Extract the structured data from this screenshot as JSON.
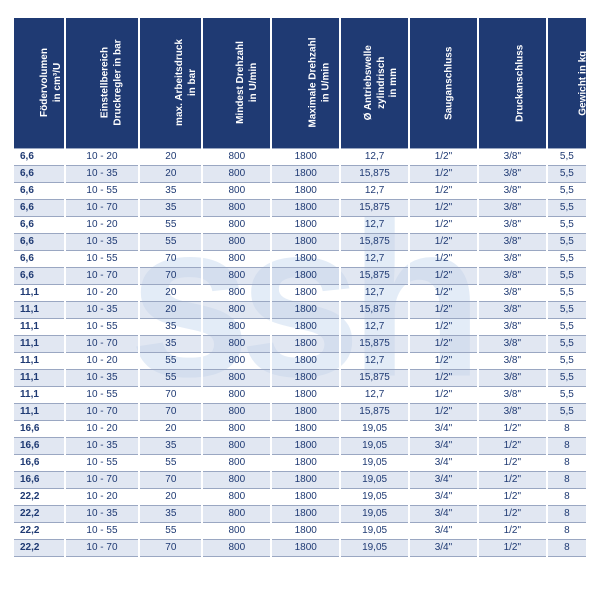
{
  "watermark": "ssh",
  "table": {
    "columns": [
      {
        "label": "Födervolumen\nin cm³/U",
        "width": "9%"
      },
      {
        "label": "Einstellbereich\nDruckregler in bar",
        "width": "13%"
      },
      {
        "label": "max. Arbeitsdruck\nin bar",
        "width": "11%"
      },
      {
        "label": "Mindest Drehzahl\nin U/min",
        "width": "12%"
      },
      {
        "label": "Maximale Drehzahl\nin U/min",
        "width": "12%"
      },
      {
        "label": "Ø Antriebswelle\nzylindrisch\nin mm",
        "width": "12%"
      },
      {
        "label": "Sauganschluss",
        "width": "12%"
      },
      {
        "label": "Druckanschluss",
        "width": "12%"
      },
      {
        "label": "Gewicht in kg",
        "width": "7%"
      }
    ],
    "rows": [
      [
        "6,6",
        "10 - 20",
        "20",
        "800",
        "1800",
        "12,7",
        "1/2\"",
        "3/8\"",
        "5,5"
      ],
      [
        "6,6",
        "10 - 35",
        "20",
        "800",
        "1800",
        "15,875",
        "1/2\"",
        "3/8\"",
        "5,5"
      ],
      [
        "6,6",
        "10 - 55",
        "35",
        "800",
        "1800",
        "12,7",
        "1/2\"",
        "3/8\"",
        "5,5"
      ],
      [
        "6,6",
        "10 - 70",
        "35",
        "800",
        "1800",
        "15,875",
        "1/2\"",
        "3/8\"",
        "5,5"
      ],
      [
        "6,6",
        "10 - 20",
        "55",
        "800",
        "1800",
        "12,7",
        "1/2\"",
        "3/8\"",
        "5,5"
      ],
      [
        "6,6",
        "10 - 35",
        "55",
        "800",
        "1800",
        "15,875",
        "1/2\"",
        "3/8\"",
        "5,5"
      ],
      [
        "6,6",
        "10 - 55",
        "70",
        "800",
        "1800",
        "12,7",
        "1/2\"",
        "3/8\"",
        "5,5"
      ],
      [
        "6,6",
        "10 - 70",
        "70",
        "800",
        "1800",
        "15,875",
        "1/2\"",
        "3/8\"",
        "5,5"
      ],
      [
        "11,1",
        "10 - 20",
        "20",
        "800",
        "1800",
        "12,7",
        "1/2\"",
        "3/8\"",
        "5,5"
      ],
      [
        "11,1",
        "10 - 35",
        "20",
        "800",
        "1800",
        "15,875",
        "1/2\"",
        "3/8\"",
        "5,5"
      ],
      [
        "11,1",
        "10 - 55",
        "35",
        "800",
        "1800",
        "12,7",
        "1/2\"",
        "3/8\"",
        "5,5"
      ],
      [
        "11,1",
        "10 - 70",
        "35",
        "800",
        "1800",
        "15,875",
        "1/2\"",
        "3/8\"",
        "5,5"
      ],
      [
        "11,1",
        "10 - 20",
        "55",
        "800",
        "1800",
        "12,7",
        "1/2\"",
        "3/8\"",
        "5,5"
      ],
      [
        "11,1",
        "10 - 35",
        "55",
        "800",
        "1800",
        "15,875",
        "1/2\"",
        "3/8\"",
        "5,5"
      ],
      [
        "11,1",
        "10 - 55",
        "70",
        "800",
        "1800",
        "12,7",
        "1/2\"",
        "3/8\"",
        "5,5"
      ],
      [
        "11,1",
        "10 - 70",
        "70",
        "800",
        "1800",
        "15,875",
        "1/2\"",
        "3/8\"",
        "5,5"
      ],
      [
        "16,6",
        "10 - 20",
        "20",
        "800",
        "1800",
        "19,05",
        "3/4\"",
        "1/2\"",
        "8"
      ],
      [
        "16,6",
        "10 - 35",
        "35",
        "800",
        "1800",
        "19,05",
        "3/4\"",
        "1/2\"",
        "8"
      ],
      [
        "16,6",
        "10 - 55",
        "55",
        "800",
        "1800",
        "19,05",
        "3/4\"",
        "1/2\"",
        "8"
      ],
      [
        "16,6",
        "10 - 70",
        "70",
        "800",
        "1800",
        "19,05",
        "3/4\"",
        "1/2\"",
        "8"
      ],
      [
        "22,2",
        "10 - 20",
        "20",
        "800",
        "1800",
        "19,05",
        "3/4\"",
        "1/2\"",
        "8"
      ],
      [
        "22,2",
        "10 - 35",
        "35",
        "800",
        "1800",
        "19,05",
        "3/4\"",
        "1/2\"",
        "8"
      ],
      [
        "22,2",
        "10 - 55",
        "55",
        "800",
        "1800",
        "19,05",
        "3/4\"",
        "1/2\"",
        "8"
      ],
      [
        "22,2",
        "10 - 70",
        "70",
        "800",
        "1800",
        "19,05",
        "3/4\"",
        "1/2\"",
        "8"
      ]
    ],
    "header_bg": "#1f3a73",
    "header_fg": "#ffffff",
    "row_alt_bg": "rgba(200,212,232,0.55)",
    "cell_fg": "#1f3a73",
    "border_color": "#9aa7c2"
  }
}
